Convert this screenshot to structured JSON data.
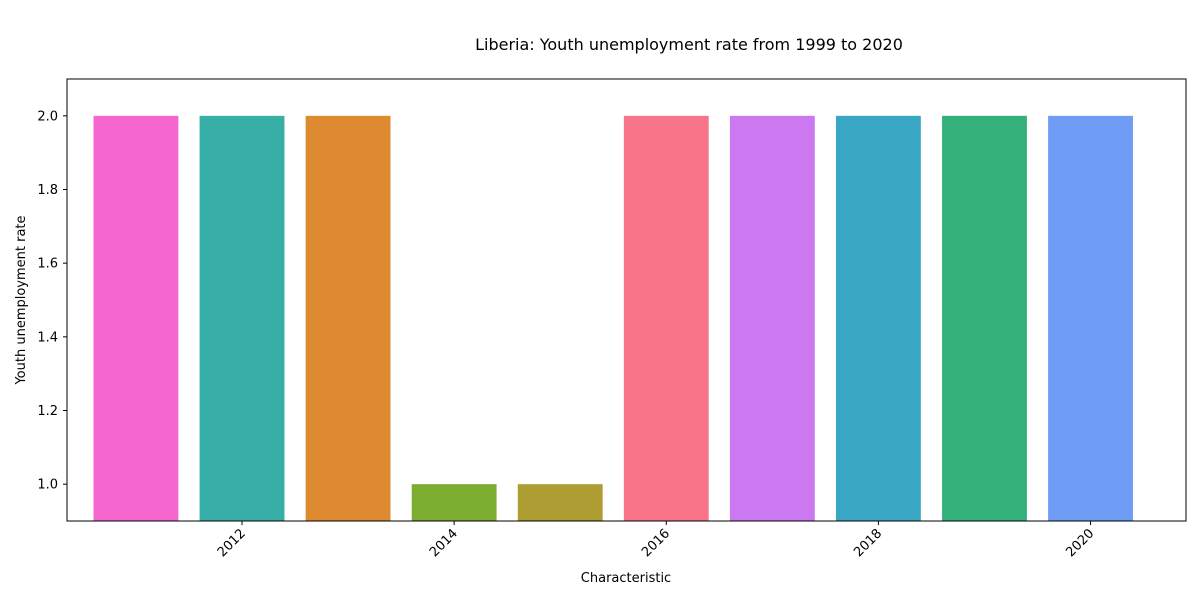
{
  "chart_data": {
    "type": "bar",
    "title": "Liberia: Youth unemployment rate from 1999 to 2020",
    "xlabel": "Characteristic",
    "ylabel": "Youth unemployment rate",
    "x": [
      2011,
      2012,
      2013,
      2014,
      2015,
      2016,
      2017,
      2018,
      2019,
      2020
    ],
    "values": [
      2,
      2,
      2,
      1,
      1,
      2,
      2,
      2,
      2,
      2
    ],
    "colors": [
      "#f566cf",
      "#37aea6",
      "#de8a31",
      "#7aad30",
      "#ad9d33",
      "#f77489",
      "#cb78f1",
      "#39a7c4",
      "#34b07b",
      "#6f9cf4"
    ],
    "xticks": [
      2012,
      2014,
      2016,
      2018,
      2020
    ],
    "xtick_labels": [
      "2012",
      "2014",
      "2016",
      "2018",
      "2020"
    ],
    "yticks": [
      1.0,
      1.2,
      1.4,
      1.6,
      1.8,
      2.0
    ],
    "ytick_labels": [
      "1.0",
      "1.2",
      "1.4",
      "1.6",
      "1.8",
      "2.0"
    ],
    "xlim": [
      2010.35,
      2020.9
    ],
    "ylim": [
      0.9,
      2.1
    ],
    "grid": false,
    "legend": "none"
  }
}
